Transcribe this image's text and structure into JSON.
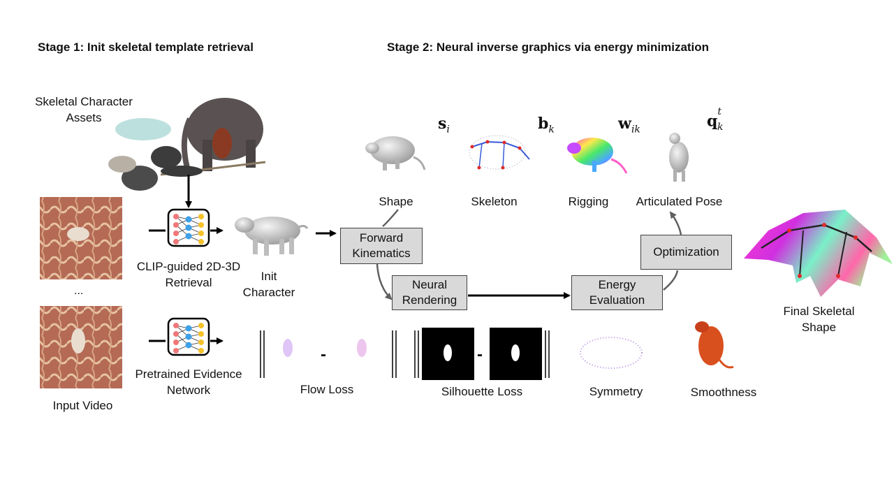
{
  "stage1": {
    "title": "Stage 1: Init skeletal template retrieval"
  },
  "stage2": {
    "title": "Stage 2: Neural inverse graphics via energy minimization"
  },
  "assets_label": "Skeletal Character Assets",
  "input_video_label": "Input  Video",
  "ellipsis": "...",
  "clip_label": "CLIP-guided 2D-3D Retrieval",
  "evidence_label": "Pretrained Evidence Network",
  "init_char_label": "Init Character",
  "boxes": {
    "fk": "Forward Kinematics",
    "neural_rendering": "Neural Rendering",
    "energy": "Energy Evaluation",
    "optimization": "Optimization"
  },
  "params": {
    "shape": {
      "symbol": "s",
      "sub": "i",
      "label": "Shape"
    },
    "skeleton": {
      "symbol": "b",
      "sub": "k",
      "label": "Skeleton"
    },
    "rigging": {
      "symbol": "w",
      "sub": "ik",
      "label": "Rigging"
    },
    "pose": {
      "symbol": "q",
      "sub": "k",
      "sup": "t",
      "label": "Articulated Pose"
    }
  },
  "losses": {
    "flow": "Flow Loss",
    "silhouette": "Silhouette Loss",
    "symmetry": "Symmetry",
    "smoothness": "Smoothness",
    "minus": "-"
  },
  "final_label": "Final Skeletal Shape"
}
